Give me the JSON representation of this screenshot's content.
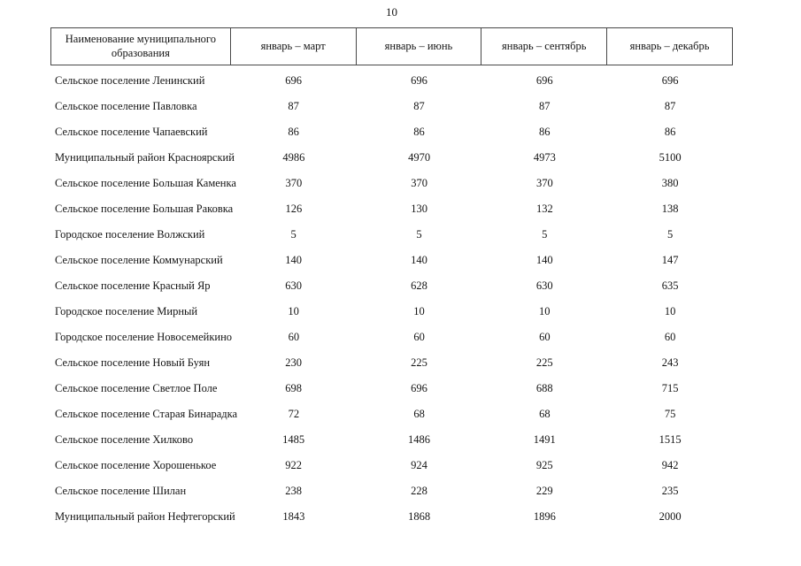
{
  "page": {
    "number": "10"
  },
  "table": {
    "header": {
      "name_col": "Наименование муниципального образования",
      "period_cols": [
        "январь – март",
        "январь – июнь",
        "январь – сентябрь",
        "январь – декабрь"
      ]
    },
    "rows": [
      {
        "name": "Сельское поселение Ленинский",
        "values": [
          "696",
          "696",
          "696",
          "696"
        ]
      },
      {
        "name": "Сельское поселение Павловка",
        "values": [
          "87",
          "87",
          "87",
          "87"
        ]
      },
      {
        "name": "Сельское поселение Чапаевский",
        "values": [
          "86",
          "86",
          "86",
          "86"
        ]
      },
      {
        "name": "Муниципальный район Красноярский",
        "values": [
          "4986",
          "4970",
          "4973",
          "5100"
        ]
      },
      {
        "name": "Сельское поселение Большая Каменка",
        "values": [
          "370",
          "370",
          "370",
          "380"
        ]
      },
      {
        "name": "Сельское поселение Большая Раковка",
        "values": [
          "126",
          "130",
          "132",
          "138"
        ]
      },
      {
        "name": "Городское поселение Волжский",
        "values": [
          "5",
          "5",
          "5",
          "5"
        ]
      },
      {
        "name": "Сельское поселение Коммунарский",
        "values": [
          "140",
          "140",
          "140",
          "147"
        ]
      },
      {
        "name": "Сельское поселение Красный Яр",
        "values": [
          "630",
          "628",
          "630",
          "635"
        ]
      },
      {
        "name": "Городское поселение Мирный",
        "values": [
          "10",
          "10",
          "10",
          "10"
        ]
      },
      {
        "name": "Городское поселение Новосемейкино",
        "values": [
          "60",
          "60",
          "60",
          "60"
        ]
      },
      {
        "name": "Сельское поселение Новый Буян",
        "values": [
          "230",
          "225",
          "225",
          "243"
        ]
      },
      {
        "name": "Сельское поселение Светлое Поле",
        "values": [
          "698",
          "696",
          "688",
          "715"
        ]
      },
      {
        "name": "Сельское поселение Старая Бинарадка",
        "values": [
          "72",
          "68",
          "68",
          "75"
        ]
      },
      {
        "name": "Сельское поселение Хилково",
        "values": [
          "1485",
          "1486",
          "1491",
          "1515"
        ]
      },
      {
        "name": "Сельское поселение Хорошенькое",
        "values": [
          "922",
          "924",
          "925",
          "942"
        ]
      },
      {
        "name": "Сельское поселение Шилан",
        "values": [
          "238",
          "228",
          "229",
          "235"
        ]
      },
      {
        "name": "Муниципальный район Нефтегорский",
        "values": [
          "1843",
          "1868",
          "1896",
          "2000"
        ]
      }
    ]
  }
}
